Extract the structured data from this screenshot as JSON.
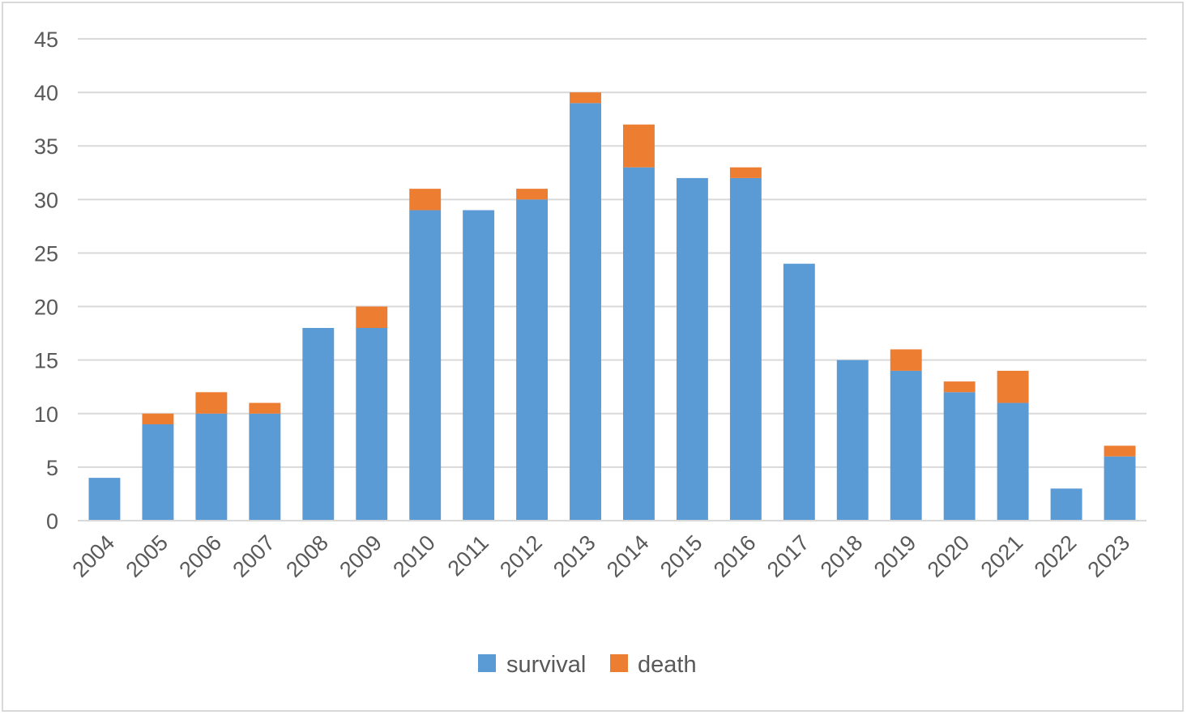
{
  "chart_data": {
    "type": "bar",
    "stacked": true,
    "title": "",
    "xlabel": "",
    "ylabel": "",
    "categories": [
      "2004",
      "2005",
      "2006",
      "2007",
      "2008",
      "2009",
      "2010",
      "2011",
      "2012",
      "2013",
      "2014",
      "2015",
      "2016",
      "2017",
      "2018",
      "2019",
      "2020",
      "2021",
      "2022",
      "2023"
    ],
    "series": [
      {
        "name": "survival",
        "color": "#5b9bd5",
        "values": [
          4,
          9,
          10,
          10,
          18,
          18,
          29,
          29,
          30,
          39,
          33,
          32,
          32,
          24,
          15,
          14,
          12,
          11,
          3,
          6
        ]
      },
      {
        "name": "death",
        "color": "#ed7d31",
        "values": [
          0,
          1,
          2,
          1,
          0,
          2,
          2,
          0,
          1,
          1,
          4,
          0,
          1,
          0,
          0,
          2,
          1,
          3,
          0,
          1
        ]
      }
    ],
    "ylim": [
      0,
      45
    ],
    "yticks": [
      0,
      5,
      10,
      15,
      20,
      25,
      30,
      35,
      40,
      45
    ],
    "grid": true,
    "legend": "bottom"
  }
}
